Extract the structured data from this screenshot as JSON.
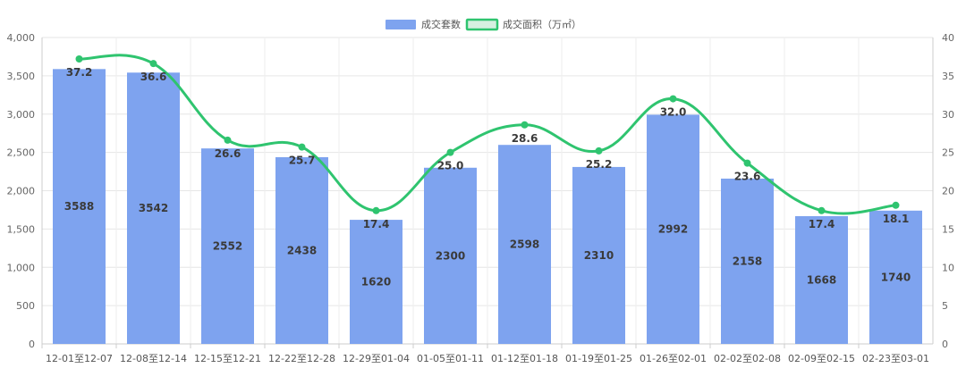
{
  "chart_data": {
    "type": "bar",
    "categories": [
      "12-01至12-07",
      "12-08至12-14",
      "12-15至12-21",
      "12-22至12-28",
      "12-29至01-04",
      "01-05至01-11",
      "01-12至01-18",
      "01-19至01-25",
      "01-26至02-01",
      "02-02至02-08",
      "02-09至02-15",
      "02-23至03-01"
    ],
    "series": [
      {
        "name": "成交套数",
        "type": "bar",
        "axis": "left",
        "color": "#7ea3ef",
        "values": [
          3588,
          3542,
          2552,
          2438,
          1620,
          2300,
          2598,
          2310,
          2992,
          2158,
          1668,
          1740
        ]
      },
      {
        "name": "成交面积（万㎡）",
        "type": "line",
        "axis": "right",
        "color": "#2fc46f",
        "values": [
          37.2,
          36.6,
          26.6,
          25.7,
          17.4,
          25.0,
          28.6,
          25.2,
          32.0,
          23.6,
          17.4,
          18.1
        ]
      }
    ],
    "y_left": {
      "min": 0,
      "max": 4000,
      "step": 500,
      "tick_labels": [
        "0",
        "500",
        "1,000",
        "1,500",
        "2,000",
        "2,500",
        "3,000",
        "3,500",
        "4,000"
      ]
    },
    "y_right": {
      "min": 0,
      "max": 40,
      "step": 5,
      "tick_labels": [
        "0",
        "5",
        "10",
        "15",
        "20",
        "25",
        "30",
        "35",
        "40"
      ]
    },
    "grid": true,
    "legend_position": "top-center"
  }
}
